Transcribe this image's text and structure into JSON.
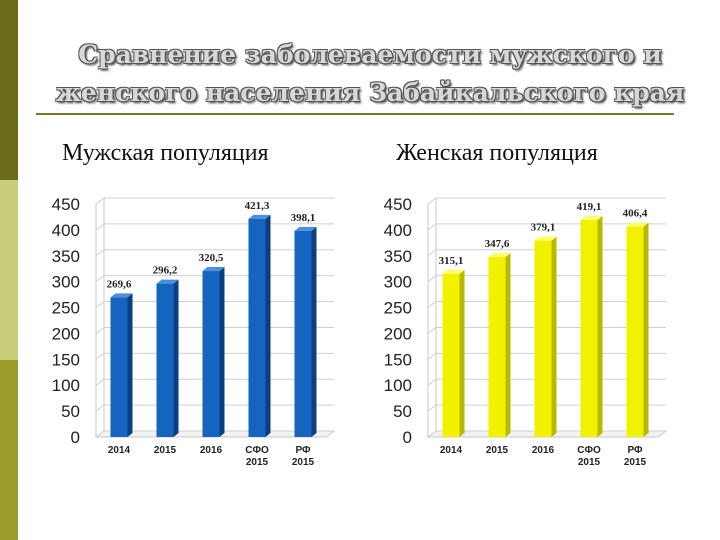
{
  "title": {
    "line1": "Сравнение заболеваемости мужского и",
    "line2": "женского населения Забайкальского края"
  },
  "chart_data": [
    {
      "type": "bar",
      "title": "Мужская популяция",
      "categories": [
        [
          "2014"
        ],
        [
          "2015"
        ],
        [
          "2016"
        ],
        [
          "СФО",
          "2015"
        ],
        [
          "РФ",
          "2015"
        ]
      ],
      "values": [
        269.6,
        296.2,
        320.5,
        421.3,
        398.1
      ],
      "value_labels": [
        "269,6",
        "296,2",
        "320,5",
        "421,3",
        "398,1"
      ],
      "yticks": [
        "0",
        "50",
        "100",
        "150",
        "200",
        "250",
        "300",
        "350",
        "400",
        "450"
      ],
      "ylim": [
        0,
        450
      ],
      "grid": true,
      "color": "#1565c0",
      "color_dark": "#0b3f80",
      "color_light": "#4a8fe0"
    },
    {
      "type": "bar",
      "title": "Женская популяция",
      "categories": [
        [
          "2014"
        ],
        [
          "2015"
        ],
        [
          "2016"
        ],
        [
          "СФО",
          "2015"
        ],
        [
          "РФ",
          "2015"
        ]
      ],
      "values": [
        315.1,
        347.6,
        379.1,
        419.1,
        406.4
      ],
      "value_labels": [
        "315,1",
        "347,6",
        "379,1",
        "419,1",
        "406,4"
      ],
      "yticks": [
        "0",
        "50",
        "100",
        "150",
        "200",
        "250",
        "300",
        "350",
        "400",
        "450"
      ],
      "ylim": [
        0,
        450
      ],
      "grid": true,
      "color": "#f2f200",
      "color_dark": "#b8b800",
      "color_light": "#ffff66"
    }
  ]
}
